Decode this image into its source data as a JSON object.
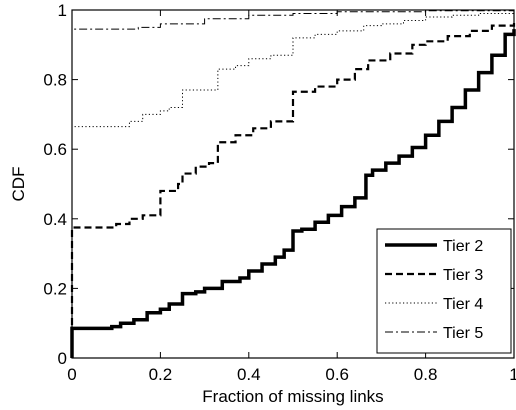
{
  "chart_data": {
    "type": "line",
    "xlabel": "Fraction of missing links",
    "ylabel": "CDF",
    "xlim": [
      0,
      1
    ],
    "ylim": [
      0,
      1
    ],
    "x_ticks": [
      "0",
      "0.2",
      "0.4",
      "0.6",
      "0.8",
      "1"
    ],
    "y_ticks": [
      "0",
      "0.2",
      "0.4",
      "0.6",
      "0.8",
      "1"
    ],
    "x_tick_values": [
      0,
      0.2,
      0.4,
      0.6,
      0.8,
      1
    ],
    "y_tick_values": [
      0,
      0.2,
      0.4,
      0.6,
      0.8,
      1
    ],
    "grid": false,
    "legend_position": "bottom-right",
    "step": true,
    "series": [
      {
        "name": "Tier 2",
        "style": "solid-thick",
        "color": "#000000",
        "points": [
          [
            0,
            0
          ],
          [
            0,
            0.085
          ],
          [
            0.08,
            0.085
          ],
          [
            0.09,
            0.09
          ],
          [
            0.11,
            0.1
          ],
          [
            0.14,
            0.11
          ],
          [
            0.17,
            0.13
          ],
          [
            0.2,
            0.14
          ],
          [
            0.22,
            0.155
          ],
          [
            0.25,
            0.17
          ],
          [
            0.25,
            0.185
          ],
          [
            0.28,
            0.19
          ],
          [
            0.3,
            0.2
          ],
          [
            0.33,
            0.2
          ],
          [
            0.34,
            0.22
          ],
          [
            0.38,
            0.23
          ],
          [
            0.4,
            0.25
          ],
          [
            0.43,
            0.27
          ],
          [
            0.46,
            0.29
          ],
          [
            0.48,
            0.31
          ],
          [
            0.5,
            0.32
          ],
          [
            0.5,
            0.365
          ],
          [
            0.52,
            0.37
          ],
          [
            0.55,
            0.39
          ],
          [
            0.58,
            0.41
          ],
          [
            0.61,
            0.435
          ],
          [
            0.64,
            0.46
          ],
          [
            0.665,
            0.49
          ],
          [
            0.665,
            0.525
          ],
          [
            0.68,
            0.54
          ],
          [
            0.71,
            0.56
          ],
          [
            0.74,
            0.58
          ],
          [
            0.77,
            0.605
          ],
          [
            0.8,
            0.64
          ],
          [
            0.83,
            0.68
          ],
          [
            0.86,
            0.72
          ],
          [
            0.89,
            0.77
          ],
          [
            0.92,
            0.82
          ],
          [
            0.95,
            0.87
          ],
          [
            0.98,
            0.93
          ],
          [
            1,
            0.945
          ]
        ]
      },
      {
        "name": "Tier 3",
        "style": "dashed",
        "color": "#000000",
        "points": [
          [
            0,
            0
          ],
          [
            0,
            0.375
          ],
          [
            0.07,
            0.375
          ],
          [
            0.1,
            0.385
          ],
          [
            0.13,
            0.4
          ],
          [
            0.16,
            0.41
          ],
          [
            0.2,
            0.43
          ],
          [
            0.2,
            0.48
          ],
          [
            0.24,
            0.5
          ],
          [
            0.25,
            0.53
          ],
          [
            0.28,
            0.55
          ],
          [
            0.31,
            0.56
          ],
          [
            0.33,
            0.57
          ],
          [
            0.33,
            0.62
          ],
          [
            0.37,
            0.64
          ],
          [
            0.41,
            0.66
          ],
          [
            0.45,
            0.68
          ],
          [
            0.5,
            0.7
          ],
          [
            0.5,
            0.765
          ],
          [
            0.55,
            0.78
          ],
          [
            0.6,
            0.8
          ],
          [
            0.64,
            0.83
          ],
          [
            0.67,
            0.855
          ],
          [
            0.72,
            0.875
          ],
          [
            0.77,
            0.9
          ],
          [
            0.8,
            0.91
          ],
          [
            0.85,
            0.925
          ],
          [
            0.9,
            0.94
          ],
          [
            0.95,
            0.955
          ],
          [
            1,
            0.965
          ]
        ]
      },
      {
        "name": "Tier 4",
        "style": "dotted",
        "color": "#000000",
        "points": [
          [
            0,
            0
          ],
          [
            0,
            0.665
          ],
          [
            0.1,
            0.665
          ],
          [
            0.13,
            0.68
          ],
          [
            0.16,
            0.7
          ],
          [
            0.2,
            0.71
          ],
          [
            0.22,
            0.72
          ],
          [
            0.25,
            0.74
          ],
          [
            0.25,
            0.77
          ],
          [
            0.3,
            0.77
          ],
          [
            0.33,
            0.78
          ],
          [
            0.33,
            0.83
          ],
          [
            0.37,
            0.84
          ],
          [
            0.4,
            0.86
          ],
          [
            0.45,
            0.87
          ],
          [
            0.5,
            0.88
          ],
          [
            0.5,
            0.92
          ],
          [
            0.55,
            0.93
          ],
          [
            0.6,
            0.94
          ],
          [
            0.66,
            0.955
          ],
          [
            0.7,
            0.96
          ],
          [
            0.75,
            0.97
          ],
          [
            0.8,
            0.98
          ],
          [
            0.86,
            0.985
          ],
          [
            0.92,
            0.99
          ],
          [
            1,
            0.995
          ]
        ]
      },
      {
        "name": "Tier 5",
        "style": "dashdot",
        "color": "#000000",
        "points": [
          [
            0,
            0
          ],
          [
            0,
            0.945
          ],
          [
            0.1,
            0.945
          ],
          [
            0.15,
            0.95
          ],
          [
            0.2,
            0.96
          ],
          [
            0.3,
            0.975
          ],
          [
            0.4,
            0.985
          ],
          [
            0.5,
            0.99
          ],
          [
            0.6,
            0.995
          ],
          [
            0.8,
            0.998
          ],
          [
            1,
            1
          ]
        ]
      }
    ]
  }
}
